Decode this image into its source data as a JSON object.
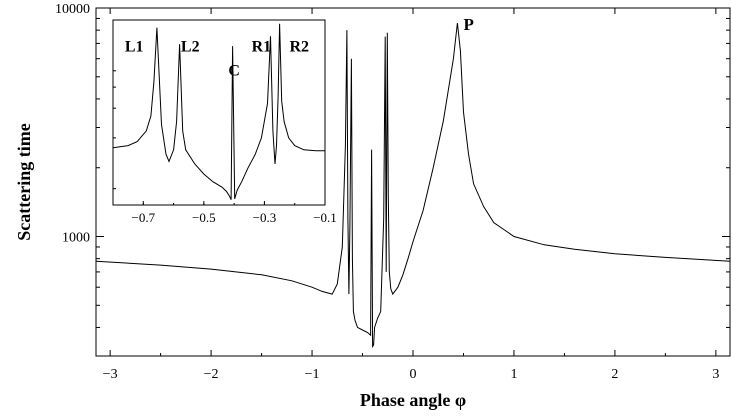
{
  "chart_data": [
    {
      "type": "line",
      "xlabel": "Phase angle  φ",
      "ylabel": "Scattering time",
      "y_scale": "log",
      "xlim": [
        -3.14,
        3.14
      ],
      "ylim": [
        300,
        10000
      ],
      "x_ticks": [
        -3,
        -2,
        -1,
        0,
        1,
        2,
        3
      ],
      "y_ticks": [
        1000,
        10000
      ],
      "grid": false,
      "legend": "none",
      "series": [
        {
          "x": [
            -3.14,
            -2.5,
            -2.0,
            -1.5,
            -1.2,
            -1.0,
            -0.9,
            -0.8,
            -0.75,
            -0.7,
            -0.67,
            -0.655,
            -0.645,
            -0.635,
            -0.625,
            -0.61,
            -0.6,
            -0.59,
            -0.575,
            -0.55,
            -0.5,
            -0.45,
            -0.42,
            -0.41,
            -0.4,
            -0.39,
            -0.38,
            -0.35,
            -0.32,
            -0.29,
            -0.275,
            -0.265,
            -0.255,
            -0.245,
            -0.235,
            -0.22,
            -0.2,
            -0.15,
            -0.1,
            -0.05,
            0.0,
            0.1,
            0.2,
            0.3,
            0.4,
            0.44,
            0.47,
            0.5,
            0.55,
            0.6,
            0.7,
            0.8,
            1.0,
            1.3,
            1.6,
            2.0,
            2.5,
            3.14
          ],
          "y": [
            780,
            750,
            720,
            680,
            640,
            600,
            575,
            560,
            620,
            900,
            2500,
            8000,
            1200,
            560,
            1100,
            6000,
            800,
            470,
            430,
            400,
            390,
            380,
            370,
            2400,
            330,
            335,
            400,
            440,
            470,
            1200,
            7500,
            700,
            7800,
            1500,
            700,
            590,
            560,
            600,
            680,
            800,
            950,
            1300,
            2000,
            3200,
            6000,
            8600,
            6500,
            3500,
            2300,
            1700,
            1350,
            1150,
            1000,
            920,
            880,
            840,
            810,
            780
          ]
        }
      ],
      "annotations": [
        {
          "text": "P",
          "x": 0.48,
          "y": 8000
        }
      ]
    },
    {
      "type": "line",
      "inset": true,
      "xlim": [
        -0.8,
        -0.1
      ],
      "x_ticks": [
        -0.7,
        -0.5,
        -0.3,
        -0.1
      ],
      "y_scale": "log",
      "ylim": [
        800,
        10000
      ],
      "series": [
        {
          "x": [
            -0.8,
            -0.75,
            -0.72,
            -0.69,
            -0.675,
            -0.665,
            -0.655,
            -0.64,
            -0.625,
            -0.615,
            -0.6,
            -0.59,
            -0.58,
            -0.57,
            -0.56,
            -0.53,
            -0.5,
            -0.47,
            -0.44,
            -0.425,
            -0.415,
            -0.41,
            -0.405,
            -0.398,
            -0.39,
            -0.375,
            -0.355,
            -0.33,
            -0.31,
            -0.29,
            -0.28,
            -0.272,
            -0.265,
            -0.26,
            -0.255,
            -0.25,
            -0.243,
            -0.235,
            -0.22,
            -0.2,
            -0.17,
            -0.13,
            -0.1
          ],
          "y": [
            1750,
            1800,
            1900,
            2200,
            2700,
            4300,
            9000,
            2400,
            1600,
            1450,
            1700,
            2500,
            7200,
            2200,
            1700,
            1400,
            1220,
            1100,
            1020,
            960,
            900,
            860,
            7000,
            870,
            980,
            1100,
            1320,
            1600,
            2000,
            3200,
            8000,
            2200,
            1400,
            1800,
            3500,
            9500,
            3300,
            2500,
            2000,
            1800,
            1700,
            1680,
            1680
          ]
        }
      ],
      "annotations": [
        {
          "text": "L1",
          "x": -0.73,
          "y": 6500
        },
        {
          "text": "L2",
          "x": -0.545,
          "y": 6500
        },
        {
          "text": "C",
          "x": -0.4,
          "y": 4700
        },
        {
          "text": "R1",
          "x": -0.31,
          "y": 6500
        },
        {
          "text": "R2",
          "x": -0.185,
          "y": 6500
        }
      ]
    }
  ]
}
